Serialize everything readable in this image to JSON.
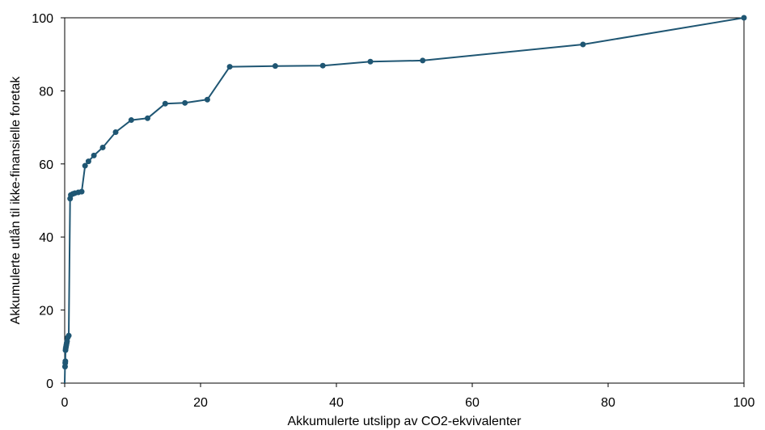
{
  "chart_data": {
    "type": "line",
    "title": "",
    "xlabel": "Akkumulerte utslipp av CO2-ekvivalenter",
    "ylabel": "Akkumulerte utlån til ikke-finansielle foretak",
    "xlim": [
      0,
      100
    ],
    "ylim": [
      0,
      100
    ],
    "xticks": [
      "0",
      "20",
      "40",
      "60",
      "80",
      "100"
    ],
    "yticks": [
      "0",
      "20",
      "40",
      "60",
      "80",
      "100"
    ],
    "grid": false,
    "legend": "none",
    "series_color": "#1f5673",
    "series": [
      {
        "x": [
          0,
          0.05,
          0.08,
          0.1,
          0.12,
          0.15,
          0.2,
          0.25,
          0.3,
          0.35,
          0.45,
          0.6,
          0.8,
          0.9,
          1.2,
          1.5,
          2.0,
          2.5,
          3.0,
          3.5,
          4.3,
          5.6,
          7.5,
          9.8,
          12.2,
          14.8,
          17.7,
          21.0,
          24.3,
          31.0,
          38.0,
          45.0,
          52.7,
          76.3,
          100
        ],
        "y": [
          0,
          4.5,
          5.5,
          6.0,
          9.0,
          9.5,
          10.0,
          10.5,
          11.0,
          11.5,
          12.5,
          13.0,
          50.5,
          51.5,
          51.8,
          52.0,
          52.2,
          52.4,
          59.5,
          60.7,
          62.3,
          64.5,
          68.7,
          72.0,
          72.5,
          76.5,
          76.7,
          77.6,
          86.6,
          86.8,
          86.9,
          88.0,
          88.3,
          92.7,
          100
        ]
      }
    ]
  }
}
